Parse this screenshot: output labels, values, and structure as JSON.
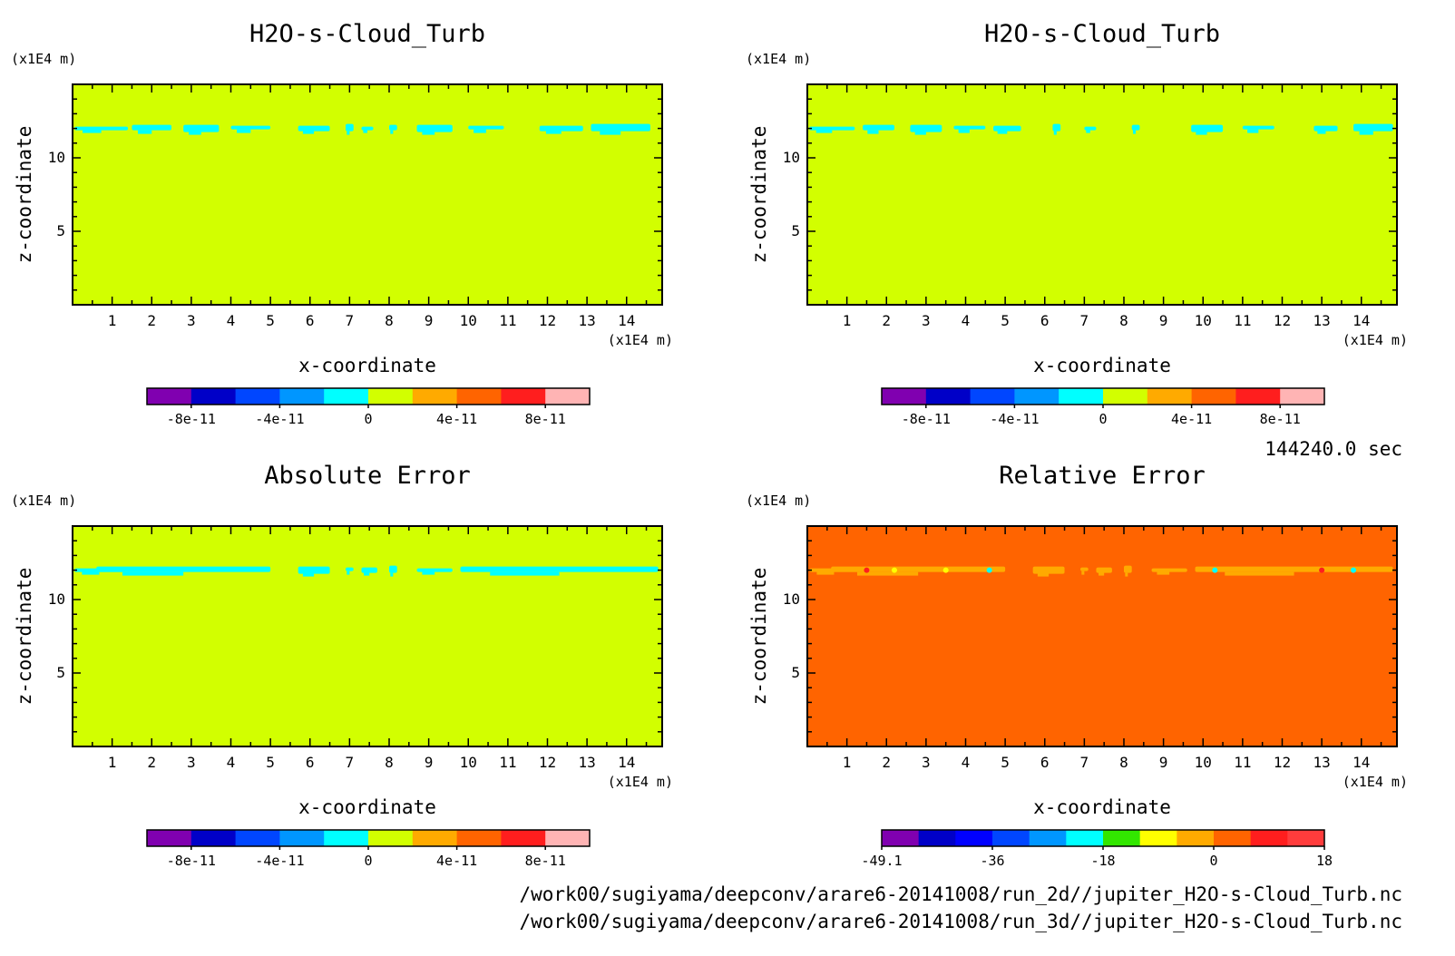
{
  "chart_data": [
    {
      "type": "heatmap",
      "title": "H2O-s-Cloud_Turb",
      "xlabel": "x-coordinate",
      "ylabel": "z-coordinate",
      "x_unit": "(x1E4 m)",
      "y_unit": "(x1E4 m)",
      "x_ticks": [
        "1",
        "2",
        "3",
        "4",
        "5",
        "6",
        "7",
        "8",
        "9",
        "10",
        "11",
        "12",
        "13",
        "14"
      ],
      "y_ticks": [
        "5",
        "10"
      ],
      "xlim": [
        0,
        14.9
      ],
      "ylim": [
        0,
        15
      ],
      "background_color": "#d2ff00",
      "feature_color": "#00ffff",
      "feature_z": 12,
      "feature_segments": [
        [
          0.05,
          1.4
        ],
        [
          1.5,
          2.5
        ],
        [
          2.8,
          3.7
        ],
        [
          4.0,
          5.0
        ],
        [
          5.7,
          6.5
        ],
        [
          6.9,
          7.1
        ],
        [
          7.3,
          7.6
        ],
        [
          8.0,
          8.2
        ],
        [
          8.7,
          9.6
        ],
        [
          10.0,
          10.9
        ],
        [
          11.8,
          12.9
        ],
        [
          13.1,
          14.6
        ]
      ],
      "colorbar": {
        "colors": [
          "#8000b0",
          "#0000c8",
          "#0046ff",
          "#0096ff",
          "#00ffff",
          "#d2ff00",
          "#ffaa00",
          "#ff6400",
          "#ff1e1e",
          "#ffb4b4"
        ],
        "tick_labels": [
          "-8e-11",
          "-4e-11",
          "0",
          "4e-11",
          "8e-11"
        ]
      }
    },
    {
      "type": "heatmap",
      "title": "H2O-s-Cloud_Turb",
      "xlabel": "x-coordinate",
      "ylabel": "z-coordinate",
      "x_unit": "(x1E4 m)",
      "y_unit": "(x1E4 m)",
      "x_ticks": [
        "1",
        "2",
        "3",
        "4",
        "5",
        "6",
        "7",
        "8",
        "9",
        "10",
        "11",
        "12",
        "13",
        "14"
      ],
      "y_ticks": [
        "5",
        "10"
      ],
      "xlim": [
        0,
        14.9
      ],
      "ylim": [
        0,
        15
      ],
      "background_color": "#d2ff00",
      "feature_color": "#00ffff",
      "feature_z": 12,
      "feature_segments": [
        [
          0.05,
          1.2
        ],
        [
          1.4,
          2.2
        ],
        [
          2.6,
          3.4
        ],
        [
          3.7,
          4.5
        ],
        [
          4.7,
          5.4
        ],
        [
          6.2,
          6.4
        ],
        [
          7.0,
          7.3
        ],
        [
          8.2,
          8.4
        ],
        [
          9.7,
          10.5
        ],
        [
          11.0,
          11.8
        ],
        [
          12.8,
          13.4
        ],
        [
          13.8,
          14.8
        ]
      ],
      "colorbar": {
        "colors": [
          "#8000b0",
          "#0000c8",
          "#0046ff",
          "#0096ff",
          "#00ffff",
          "#d2ff00",
          "#ffaa00",
          "#ff6400",
          "#ff1e1e",
          "#ffb4b4"
        ],
        "tick_labels": [
          "-8e-11",
          "-4e-11",
          "0",
          "4e-11",
          "8e-11"
        ]
      }
    },
    {
      "type": "heatmap",
      "title": "Absolute Error",
      "xlabel": "x-coordinate",
      "ylabel": "z-coordinate",
      "x_unit": "(x1E4 m)",
      "y_unit": "(x1E4 m)",
      "x_ticks": [
        "1",
        "2",
        "3",
        "4",
        "5",
        "6",
        "7",
        "8",
        "9",
        "10",
        "11",
        "12",
        "13",
        "14"
      ],
      "y_ticks": [
        "5",
        "10"
      ],
      "xlim": [
        0,
        14.9
      ],
      "ylim": [
        0,
        15
      ],
      "background_color": "#d2ff00",
      "feature_color": "#00ffff",
      "feature_z": 12,
      "feature_segments": [
        [
          0.05,
          1.3
        ],
        [
          0.6,
          5.0
        ],
        [
          5.7,
          6.5
        ],
        [
          6.9,
          7.1
        ],
        [
          7.3,
          7.7
        ],
        [
          8.0,
          8.2
        ],
        [
          8.7,
          9.6
        ],
        [
          9.8,
          14.8
        ]
      ],
      "colorbar": {
        "colors": [
          "#8000b0",
          "#0000c8",
          "#0046ff",
          "#0096ff",
          "#00ffff",
          "#d2ff00",
          "#ffaa00",
          "#ff6400",
          "#ff1e1e",
          "#ffb4b4"
        ],
        "tick_labels": [
          "-8e-11",
          "-4e-11",
          "0",
          "4e-11",
          "8e-11"
        ]
      }
    },
    {
      "type": "heatmap",
      "title": "Relative Error",
      "xlabel": "x-coordinate",
      "ylabel": "z-coordinate",
      "x_unit": "(x1E4 m)",
      "y_unit": "(x1E4 m)",
      "x_ticks": [
        "1",
        "2",
        "3",
        "4",
        "5",
        "6",
        "7",
        "8",
        "9",
        "10",
        "11",
        "12",
        "13",
        "14"
      ],
      "y_ticks": [
        "5",
        "10"
      ],
      "xlim": [
        0,
        14.9
      ],
      "ylim": [
        0,
        15
      ],
      "background_color": "#ff6400",
      "feature_color": "#ffaa00",
      "feature_z": 12,
      "feature_segments": [
        [
          0.05,
          1.3
        ],
        [
          0.6,
          5.0
        ],
        [
          5.7,
          6.5
        ],
        [
          6.9,
          7.1
        ],
        [
          7.3,
          7.7
        ],
        [
          8.0,
          8.2
        ],
        [
          8.7,
          9.6
        ],
        [
          9.8,
          14.8
        ]
      ],
      "feature_dots": [
        [
          1.5,
          "#ff1e1e"
        ],
        [
          2.2,
          "#ffff00"
        ],
        [
          3.5,
          "#ffff00"
        ],
        [
          4.6,
          "#00ffff"
        ],
        [
          10.3,
          "#00ffff"
        ],
        [
          13.0,
          "#ff1e1e"
        ],
        [
          13.8,
          "#00ffff"
        ]
      ],
      "colorbar": {
        "colors": [
          "#8000b0",
          "#0000c8",
          "#0000ff",
          "#0046ff",
          "#0096ff",
          "#00ffff",
          "#32e600",
          "#ffff00",
          "#ffaa00",
          "#ff6400",
          "#ff1e1e",
          "#ff3c3c"
        ],
        "tick_labels": [
          "-49.1",
          "-36",
          "-18",
          "0",
          "18"
        ]
      }
    }
  ],
  "timestamp": "144240.0 sec",
  "footer_lines": [
    "/work00/sugiyama/deepconv/arare6-20141008/run_2d//jupiter_H2O-s-Cloud_Turb.nc",
    "/work00/sugiyama/deepconv/arare6-20141008/run_3d//jupiter_H2O-s-Cloud_Turb.nc"
  ]
}
